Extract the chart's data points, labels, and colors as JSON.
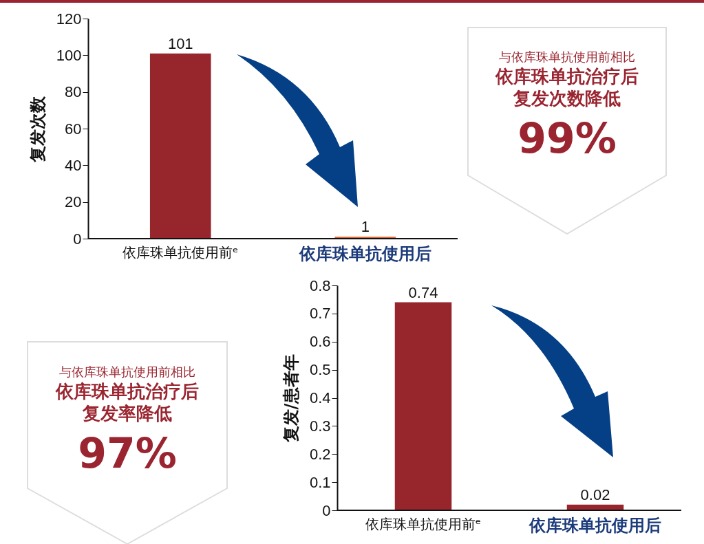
{
  "chart_data": [
    {
      "type": "bar",
      "ylabel": "复发次数",
      "categories": [
        "依库珠单抗使用前ᵉ",
        "依库珠单抗使用后"
      ],
      "values": [
        101,
        1
      ],
      "colors": [
        "#96262c",
        "#e0602c"
      ],
      "ylim": [
        0,
        120
      ],
      "yticks": [
        0,
        20,
        40,
        60,
        80,
        100,
        120
      ],
      "data_labels": true,
      "annotations": [
        "与依库珠单抗使用前相比",
        "依库珠单抗治疗后",
        "复发次数降低",
        "99%"
      ]
    },
    {
      "type": "bar",
      "ylabel": "复发/患者年",
      "categories": [
        "依库珠单抗使用前ᵉ",
        "依库珠单抗使用后"
      ],
      "values": [
        0.74,
        0.02
      ],
      "colors": [
        "#96262c",
        "#96262c"
      ],
      "ylim": [
        0,
        0.8
      ],
      "yticks": [
        0,
        0.1,
        0.2,
        0.3,
        0.4,
        0.5,
        0.6,
        0.7,
        0.8
      ],
      "data_labels": true,
      "annotations": [
        "与依库珠单抗使用前相比",
        "依库珠单抗治疗后",
        "复发率降低",
        "97%"
      ]
    }
  ]
}
